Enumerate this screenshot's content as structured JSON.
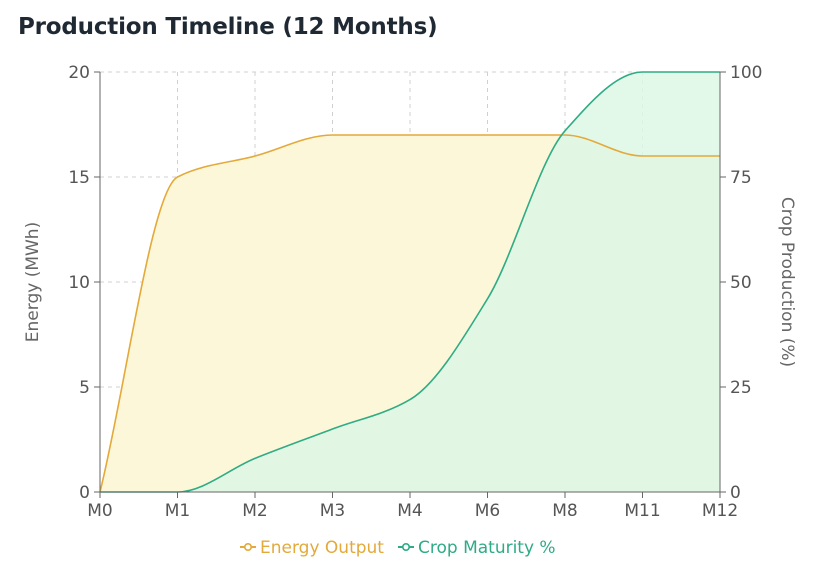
{
  "chart_data": {
    "type": "area",
    "title": "Production Timeline (12 Months)",
    "categories": [
      "M0",
      "M1",
      "M2",
      "M3",
      "M4",
      "M6",
      "M8",
      "M11",
      "M12"
    ],
    "y_left": {
      "label": "Energy (MWh)",
      "range": [
        0,
        20
      ],
      "ticks": [
        0,
        5,
        10,
        15,
        20
      ]
    },
    "y_right": {
      "label": "Crop Production (%)",
      "range": [
        0,
        100
      ],
      "ticks": [
        0,
        25,
        50,
        75,
        100
      ]
    },
    "grid": true,
    "legend_position": "bottom-center",
    "series": [
      {
        "name": "Energy Output",
        "axis": "left",
        "color": "#e3a93a",
        "fill": "#fdf7d9",
        "values": [
          0,
          15,
          16,
          17,
          17,
          17,
          17,
          16,
          16
        ]
      },
      {
        "name": "Crop Maturity %",
        "axis": "right",
        "color": "#2fab86",
        "fill": "#ddf7e4",
        "values": [
          0,
          0,
          8,
          15,
          22,
          46,
          86,
          100,
          100
        ]
      }
    ]
  }
}
